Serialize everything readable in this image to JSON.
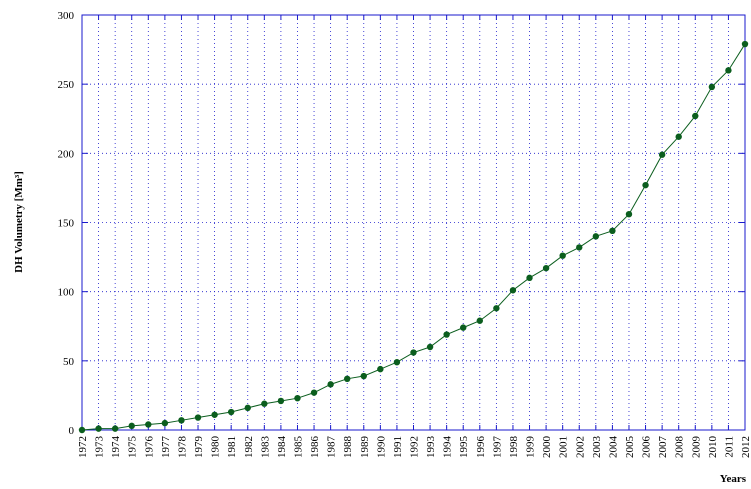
{
  "chart_data": {
    "type": "line",
    "ylabel": "DH Volumetry [Mm³]",
    "xlabel": "Years",
    "x": [
      1972,
      1973,
      1974,
      1975,
      1976,
      1977,
      1978,
      1979,
      1980,
      1981,
      1982,
      1983,
      1984,
      1985,
      1986,
      1987,
      1988,
      1989,
      1990,
      1991,
      1992,
      1993,
      1994,
      1995,
      1996,
      1997,
      1998,
      1999,
      2000,
      2001,
      2002,
      2003,
      2004,
      2005,
      2006,
      2007,
      2008,
      2009,
      2010,
      2011,
      2012
    ],
    "series": [
      {
        "color": "#0b5e1e",
        "values": [
          0,
          1,
          1,
          3,
          4,
          5,
          7,
          9,
          11,
          13,
          16,
          19,
          21,
          23,
          27,
          33,
          37,
          39,
          44,
          49,
          56,
          60,
          69,
          74,
          79,
          88,
          101,
          110,
          117,
          126,
          132,
          140,
          144,
          156,
          177,
          199,
          212,
          227,
          248,
          260,
          279
        ]
      }
    ],
    "xlim": [
      1972,
      2012
    ],
    "xticks": [
      1972,
      1973,
      1974,
      1975,
      1976,
      1977,
      1978,
      1979,
      1980,
      1981,
      1982,
      1983,
      1984,
      1985,
      1986,
      1987,
      1988,
      1989,
      1990,
      1991,
      1992,
      1993,
      1994,
      1995,
      1996,
      1997,
      1998,
      1999,
      2000,
      2001,
      2002,
      2003,
      2004,
      2005,
      2006,
      2007,
      2008,
      2009,
      2010,
      2011,
      2012
    ],
    "ylim": [
      0,
      300
    ],
    "yticks": [
      0,
      50,
      100,
      150,
      200,
      250,
      300
    ],
    "grid": true,
    "grid_color": "#1a1acc",
    "axis_color": "#1a1acc"
  }
}
